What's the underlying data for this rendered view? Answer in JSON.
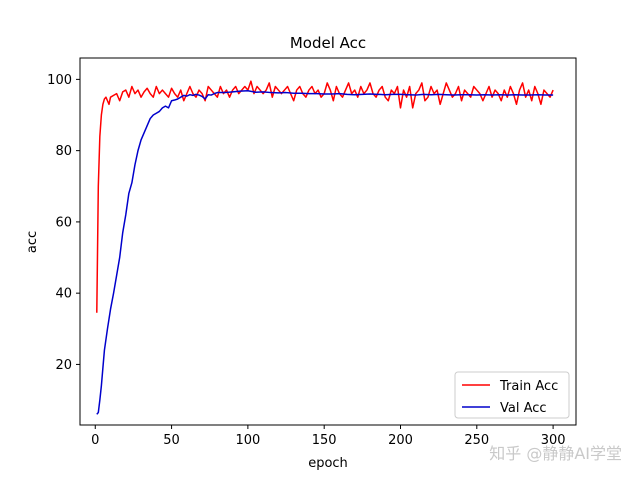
{
  "chart_data": {
    "type": "line",
    "title": "Model Acc",
    "xlabel": "epoch",
    "ylabel": "acc",
    "xlim": [
      -10,
      315
    ],
    "ylim": [
      3,
      106
    ],
    "xticks": [
      0,
      50,
      100,
      150,
      200,
      250,
      300
    ],
    "yticks": [
      20,
      40,
      60,
      80,
      100
    ],
    "grid": false,
    "legend_position": "lower-right",
    "series": [
      {
        "name": "Train Acc",
        "color": "#ff0000",
        "x": [
          1,
          2,
          3,
          4,
          5,
          6,
          7,
          8,
          9,
          10,
          12,
          14,
          16,
          18,
          20,
          22,
          24,
          26,
          28,
          30,
          32,
          34,
          36,
          38,
          40,
          42,
          44,
          46,
          48,
          50,
          52,
          54,
          56,
          58,
          60,
          62,
          64,
          66,
          68,
          70,
          72,
          74,
          76,
          78,
          80,
          82,
          84,
          86,
          88,
          90,
          92,
          94,
          96,
          98,
          100,
          102,
          104,
          106,
          108,
          110,
          112,
          114,
          116,
          118,
          120,
          122,
          124,
          126,
          128,
          130,
          132,
          134,
          136,
          138,
          140,
          142,
          144,
          146,
          148,
          150,
          152,
          154,
          156,
          158,
          160,
          162,
          164,
          166,
          168,
          170,
          172,
          174,
          176,
          178,
          180,
          182,
          184,
          186,
          188,
          190,
          192,
          194,
          196,
          198,
          200,
          202,
          204,
          206,
          208,
          210,
          212,
          214,
          216,
          218,
          220,
          222,
          224,
          226,
          228,
          230,
          232,
          234,
          236,
          238,
          240,
          242,
          244,
          246,
          248,
          250,
          252,
          254,
          256,
          258,
          260,
          262,
          264,
          266,
          268,
          270,
          272,
          274,
          276,
          278,
          280,
          282,
          284,
          286,
          288,
          290,
          292,
          294,
          296,
          298,
          300
        ],
        "values": [
          34.5,
          70,
          84,
          90,
          93,
          94.5,
          95,
          94,
          93,
          95,
          95.5,
          96,
          94,
          96.5,
          97,
          95,
          98,
          96,
          97,
          95,
          96.5,
          97.5,
          96,
          95,
          98,
          96,
          97,
          96,
          95,
          97.5,
          96,
          95,
          97,
          94,
          96,
          98,
          96,
          95,
          97,
          96,
          94,
          98,
          97,
          96,
          95,
          98,
          96,
          97,
          95,
          97,
          98,
          96,
          97,
          98,
          97,
          99.5,
          96,
          98,
          97,
          96,
          97,
          99,
          95,
          98,
          97,
          96,
          97,
          98,
          96,
          94,
          97,
          98,
          96,
          95,
          97,
          98,
          96,
          97,
          95,
          96,
          99,
          97,
          94,
          98,
          96,
          95,
          97,
          99,
          96,
          97,
          95,
          98,
          96,
          97,
          99,
          96,
          95,
          97,
          98,
          95,
          94,
          97,
          96,
          98,
          92,
          97,
          95,
          98,
          92,
          96,
          97,
          99,
          94,
          95,
          98,
          96,
          97,
          93,
          96,
          99,
          97,
          95,
          96,
          98,
          94,
          97,
          96,
          95,
          98,
          97,
          96,
          94,
          96,
          98,
          95,
          97,
          96,
          94,
          97,
          95,
          98,
          96,
          93,
          97,
          99,
          95,
          97,
          94,
          98,
          96,
          93,
          97,
          96,
          95,
          97
        ]
      },
      {
        "name": "Val Acc",
        "color": "#0000cc",
        "x": [
          1,
          2,
          3,
          4,
          5,
          6,
          8,
          10,
          12,
          14,
          16,
          18,
          20,
          22,
          24,
          26,
          28,
          30,
          32,
          34,
          36,
          38,
          40,
          42,
          44,
          46,
          48,
          50,
          52,
          54,
          56,
          58,
          60,
          62,
          64,
          66,
          68,
          70,
          72,
          74,
          76,
          78,
          80,
          85,
          90,
          95,
          100,
          105,
          110,
          115,
          120,
          125,
          130,
          135,
          140,
          145,
          150,
          155,
          160,
          165,
          170,
          175,
          180,
          185,
          190,
          195,
          200,
          205,
          210,
          215,
          220,
          225,
          230,
          235,
          240,
          245,
          250,
          255,
          260,
          265,
          270,
          275,
          280,
          285,
          290,
          295,
          300
        ],
        "values": [
          6,
          6.5,
          10,
          14,
          19,
          24,
          30,
          35.5,
          40,
          45,
          50,
          57,
          62,
          68,
          71,
          76,
          80,
          83,
          85,
          87,
          89,
          90,
          90.5,
          91,
          92,
          92.5,
          92,
          94,
          94.2,
          94.5,
          95,
          95.5,
          95.3,
          95.7,
          95.5,
          95.8,
          95.6,
          95.2,
          94.5,
          95.7,
          95.6,
          96,
          96.3,
          96.3,
          96.5,
          96.7,
          96.8,
          96.4,
          96.5,
          96.3,
          96.2,
          96.3,
          96.1,
          96.1,
          96,
          96,
          95.9,
          95.9,
          96,
          95.8,
          95.7,
          95.8,
          95.9,
          95.8,
          95.7,
          95.8,
          95.8,
          95.7,
          95.6,
          95.8,
          95.7,
          95.8,
          95.7,
          95.6,
          95.7,
          95.7,
          95.6,
          95.7,
          95.6,
          95.7,
          95.6,
          95.7,
          95.6,
          95.6,
          95.7,
          95.6,
          95.6
        ]
      }
    ]
  },
  "watermark": "知乎 @静静AI学堂"
}
